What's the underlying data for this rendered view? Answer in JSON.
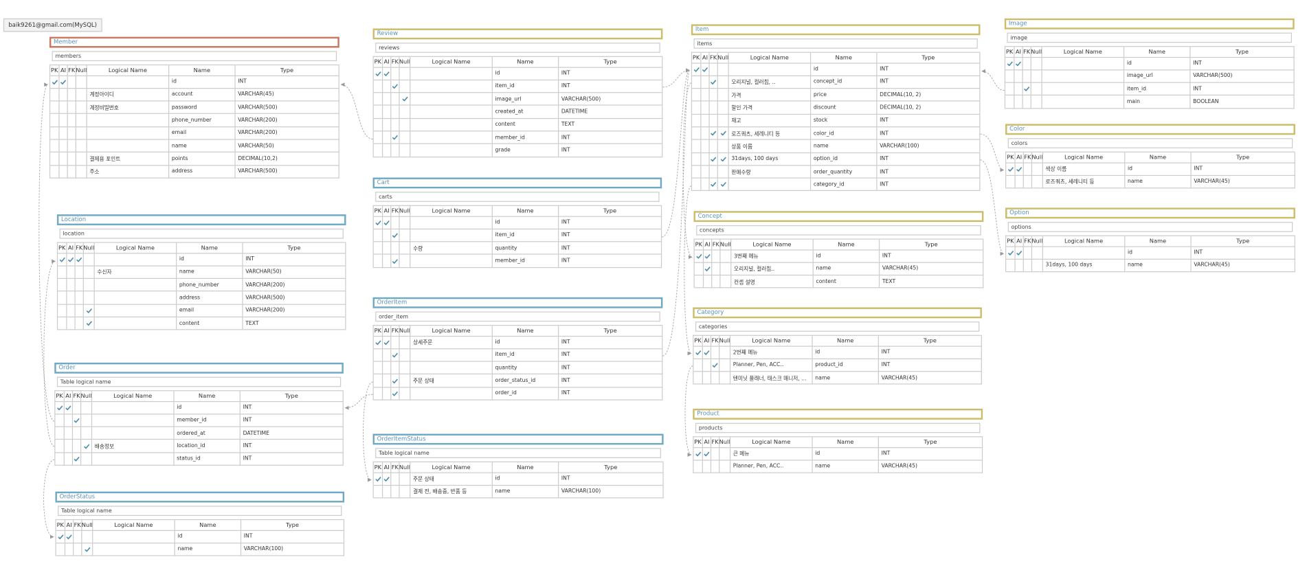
{
  "header": {
    "title": "baik9261@gmail.com(MySQL)"
  },
  "columns": [
    "PK",
    "AI",
    "FK",
    "Null",
    "Logical Name",
    "Name",
    "Type"
  ],
  "tables": [
    {
      "title": "Member",
      "name": "members",
      "color": "#c9775e",
      "rows": [
        {
          "pk": true,
          "ai": true,
          "name": "id",
          "type": "INT"
        },
        {
          "logical": "계정아이디",
          "name": "account",
          "type": "VARCHAR(45)"
        },
        {
          "logical": "계정비밀번호",
          "name": "password",
          "type": "VARCHAR(500)"
        },
        {
          "name": "phone_number",
          "type": "VARCHAR(200)"
        },
        {
          "name": "email",
          "type": "VARCHAR(200)"
        },
        {
          "name": "name",
          "type": "VARCHAR(50)"
        },
        {
          "logical": "결제용 포인트",
          "name": "points",
          "type": "DECIMAL(10,2)"
        },
        {
          "logical": "주소",
          "name": "address",
          "type": "VARCHAR(500)"
        }
      ]
    },
    {
      "title": "Location",
      "name": "location",
      "color": "#6fa9c3",
      "rows": [
        {
          "pk": true,
          "ai": true,
          "fk": true,
          "name": "id",
          "type": "INT"
        },
        {
          "logical": "수신자",
          "name": "name",
          "type": "VARCHAR(50)"
        },
        {
          "name": "phone_number",
          "type": "VARCHAR(200)"
        },
        {
          "name": "address",
          "type": "VARCHAR(500)"
        },
        {
          "null": true,
          "name": "email",
          "type": "VARCHAR(200)"
        },
        {
          "null": true,
          "name": "content",
          "type": "TEXT"
        }
      ]
    },
    {
      "title": "Order",
      "name": "Table logical name",
      "color": "#6fa9c3",
      "rows": [
        {
          "pk": true,
          "ai": true,
          "name": "id",
          "type": "INT"
        },
        {
          "fk": true,
          "name": "member_id",
          "type": "INT"
        },
        {
          "name": "ordered_at",
          "type": "DATETIME"
        },
        {
          "null": true,
          "logical": "배송정보",
          "name": "location_id",
          "type": "INT"
        },
        {
          "fk": true,
          "name": "status_id",
          "type": "INT"
        }
      ]
    },
    {
      "title": "OrderStatus",
      "name": "Table logical name",
      "color": "#6fa9c3",
      "rows": [
        {
          "pk": true,
          "ai": true,
          "name": "id",
          "type": "INT"
        },
        {
          "null": true,
          "name": "name",
          "type": "VARCHAR(100)"
        }
      ]
    },
    {
      "title": "Review",
      "name": "reviews",
      "color": "#cbbd6a",
      "rows": [
        {
          "pk": true,
          "ai": true,
          "name": "id",
          "type": "INT"
        },
        {
          "fk": true,
          "name": "item_id",
          "type": "INT"
        },
        {
          "null": true,
          "name": "image_url",
          "type": "VARCHAR(500)"
        },
        {
          "name": "created_at",
          "type": "DATETIME"
        },
        {
          "name": "content",
          "type": "TEXT"
        },
        {
          "fk": true,
          "name": "member_id",
          "type": "INT"
        },
        {
          "name": "grade",
          "type": "INT"
        }
      ]
    },
    {
      "title": "Cart",
      "name": "carts",
      "color": "#6fa9c3",
      "rows": [
        {
          "pk": true,
          "ai": true,
          "name": "id",
          "type": "INT"
        },
        {
          "fk": true,
          "name": "item_id",
          "type": "INT"
        },
        {
          "logical": "수량",
          "name": "quantity",
          "type": "INT"
        },
        {
          "fk": true,
          "name": "member_id",
          "type": "INT"
        }
      ]
    },
    {
      "title": "OrderItem",
      "name": "order_item",
      "color": "#6fa9c3",
      "rows": [
        {
          "pk": true,
          "ai": true,
          "logical": "상세주문",
          "name": "id",
          "type": "INT"
        },
        {
          "fk": true,
          "name": "item_id",
          "type": "INT"
        },
        {
          "name": "quantity",
          "type": "INT"
        },
        {
          "fk": true,
          "logical": "주문 상태",
          "name": "order_status_id",
          "type": "INT"
        },
        {
          "fk": true,
          "name": "order_id",
          "type": "INT"
        }
      ]
    },
    {
      "title": "OrderItemStatus",
      "name": "Table logical name",
      "color": "#6fa9c3",
      "rows": [
        {
          "pk": true,
          "ai": true,
          "logical": "주문 상태",
          "name": "id",
          "type": "INT"
        },
        {
          "logical": "결제 전, 배송중, 반품 등",
          "name": "name",
          "type": "VARCHAR(100)"
        }
      ]
    },
    {
      "title": "Item",
      "name": "items",
      "color": "#cbbd6a",
      "rows": [
        {
          "pk": true,
          "ai": true,
          "name": "id",
          "type": "INT"
        },
        {
          "fk": true,
          "logical": "오리지널, 컬러칩, ..",
          "name": "concept_id",
          "type": "INT"
        },
        {
          "logical": "가격",
          "name": "price",
          "type": "DECIMAL(10, 2)"
        },
        {
          "logical": "할인 가격",
          "name": "discount",
          "type": "DECIMAL(10, 2)"
        },
        {
          "logical": "재고",
          "name": "stock",
          "type": "INT"
        },
        {
          "fk": true,
          "null": true,
          "logical": "로즈쿼츠, 세레니티 등",
          "name": "color_id",
          "type": "INT"
        },
        {
          "logical": "상품 이름",
          "name": "name",
          "type": "VARCHAR(100)"
        },
        {
          "fk": true,
          "null": true,
          "logical": "31days, 100 days",
          "name": "option_id",
          "type": "INT"
        },
        {
          "logical": "판매수량",
          "name": "order_quantity",
          "type": "INT"
        },
        {
          "fk": true,
          "null": true,
          "name": "category_id",
          "type": "INT"
        }
      ]
    },
    {
      "title": "Concept",
      "name": "concepts",
      "color": "#cbbd6a",
      "rows": [
        {
          "pk": true,
          "ai": true,
          "logical": "3번째 메뉴",
          "name": "id",
          "type": "INT"
        },
        {
          "ai": true,
          "logical": "오리지널, 컬러칩..",
          "name": "name",
          "type": "VARCHAR(45)"
        },
        {
          "logical": "컨셉 설명",
          "name": "content",
          "type": "TEXT"
        }
      ]
    },
    {
      "title": "Category",
      "name": "categories",
      "color": "#cbbd6a",
      "rows": [
        {
          "pk": true,
          "ai": true,
          "logical": "2번째 메뉴",
          "name": "id",
          "type": "INT"
        },
        {
          "fk": true,
          "logical": "Planner, Pen, ACC..",
          "name": "product_id",
          "type": "INT"
        },
        {
          "logical": "텐미닛 플래너, 태스크 매니저, ...",
          "name": "name",
          "type": "VARCHAR(45)"
        }
      ]
    },
    {
      "title": "Product",
      "name": "products",
      "color": "#cbbd6a",
      "rows": [
        {
          "pk": true,
          "ai": true,
          "logical": "큰 메뉴",
          "name": "id",
          "type": "INT"
        },
        {
          "logical": "Planner, Pen, ACC..",
          "name": "name",
          "type": "VARCHAR(45)"
        }
      ]
    },
    {
      "title": "Image",
      "name": "image",
      "color": "#cbbd6a",
      "rows": [
        {
          "pk": true,
          "ai": true,
          "name": "id",
          "type": "INT"
        },
        {
          "name": "image_url",
          "type": "VARCHAR(500)"
        },
        {
          "fk": true,
          "name": "item_id",
          "type": "INT"
        },
        {
          "name": "main",
          "type": "BOOLEAN"
        }
      ]
    },
    {
      "title": "Color",
      "name": "colors",
      "color": "#cbbd6a",
      "rows": [
        {
          "pk": true,
          "ai": true,
          "logical": "색상 이름",
          "name": "id",
          "type": "INT"
        },
        {
          "logical": "로즈쿼츠, 세레니티 등",
          "name": "name",
          "type": "VARCHAR(45)"
        }
      ]
    },
    {
      "title": "Option",
      "name": "options",
      "color": "#cbbd6a",
      "rows": [
        {
          "pk": true,
          "ai": true,
          "name": "id",
          "type": "INT"
        },
        {
          "logical": "31days, 100 days",
          "name": "name",
          "type": "VARCHAR(45)"
        }
      ]
    }
  ]
}
